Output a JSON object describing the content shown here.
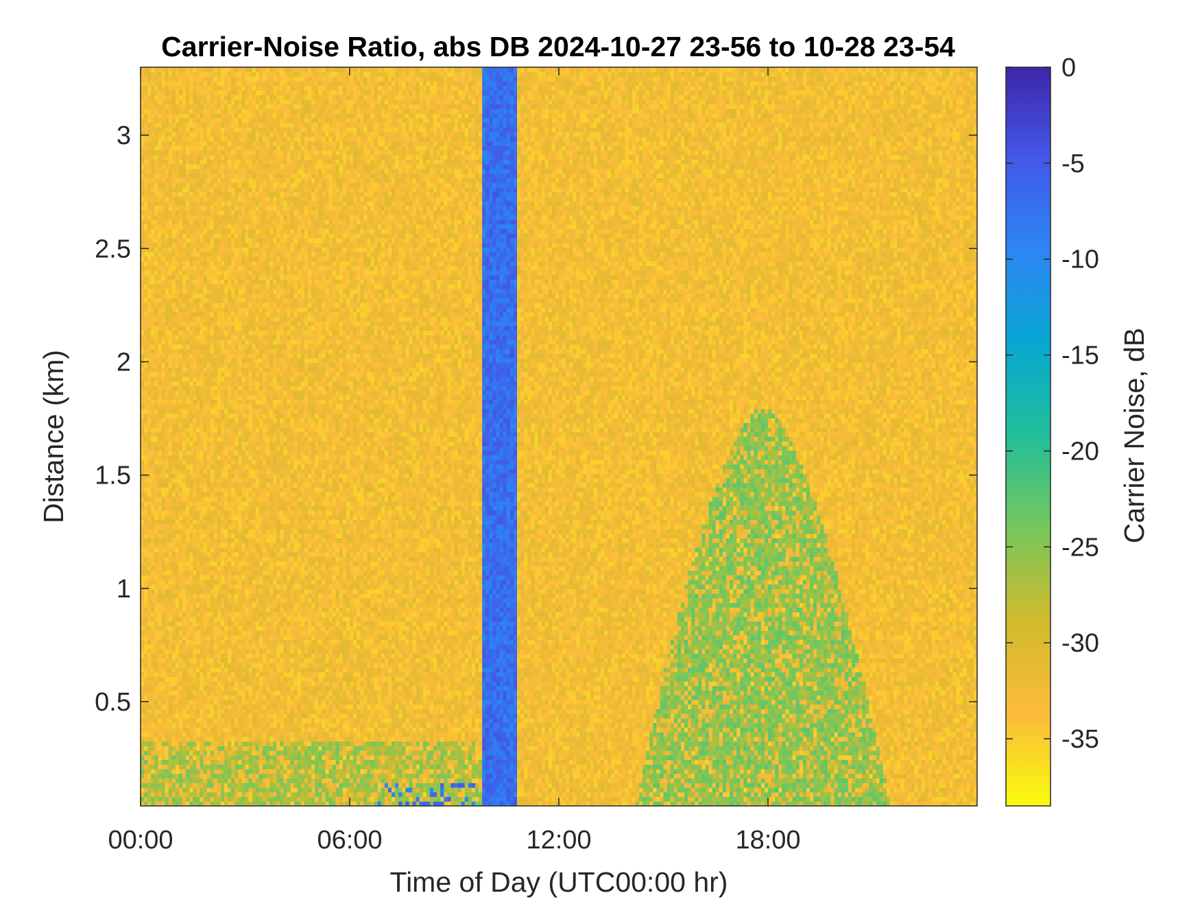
{
  "chart_data": {
    "type": "heatmap",
    "title": "Carrier-Noise Ratio, abs DB 2024-10-27 23-56 to 10-28 23-54",
    "xlabel": "Time of Day (UTC00:00 hr)",
    "ylabel": "Distance (km)",
    "colorbar_label": "Carrier Noise, dB",
    "xlim": [
      0,
      24
    ],
    "ylim": [
      0.04,
      3.3
    ],
    "clim": [
      -38.5,
      0
    ],
    "x_ticks": [
      0,
      6,
      12,
      18
    ],
    "x_tick_labels": [
      "00:00",
      "06:00",
      "12:00",
      "18:00"
    ],
    "y_ticks": [
      0.5,
      1,
      1.5,
      2,
      2.5,
      3
    ],
    "y_tick_labels": [
      "0.5",
      "1",
      "1.5",
      "2",
      "2.5",
      "3"
    ],
    "colorbar_ticks": [
      0,
      -5,
      -10,
      -15,
      -20,
      -25,
      -30,
      -35
    ],
    "colorbar_tick_labels": [
      "0",
      "-5",
      "-10",
      "-15",
      "-20",
      "-25",
      "-30",
      "-35"
    ],
    "colormap": "parula",
    "colormap_stops": [
      "#f9fb0e",
      "#fbbb3b",
      "#d2ba2d",
      "#77c75b",
      "#22bf9a",
      "#07a8d1",
      "#2c87f4",
      "#4259e8",
      "#3e26a8"
    ],
    "background_level": -33,
    "regions": [
      {
        "label": "dropout band",
        "x": [
          9.8,
          10.85
        ],
        "y": [
          0.04,
          3.3
        ],
        "value": -7
      },
      {
        "label": "near-surface layer",
        "x": [
          0,
          9.8
        ],
        "y": [
          0.04,
          0.33
        ],
        "value": -26
      },
      {
        "label": "afternoon plume",
        "x": [
          14.2,
          21.5
        ],
        "y": [
          0.04,
          1.8
        ],
        "value": -25
      },
      {
        "label": "near-surface spots",
        "x": [
          6.8,
          9.6
        ],
        "y": [
          0.04,
          0.15
        ],
        "value": -8
      }
    ]
  }
}
